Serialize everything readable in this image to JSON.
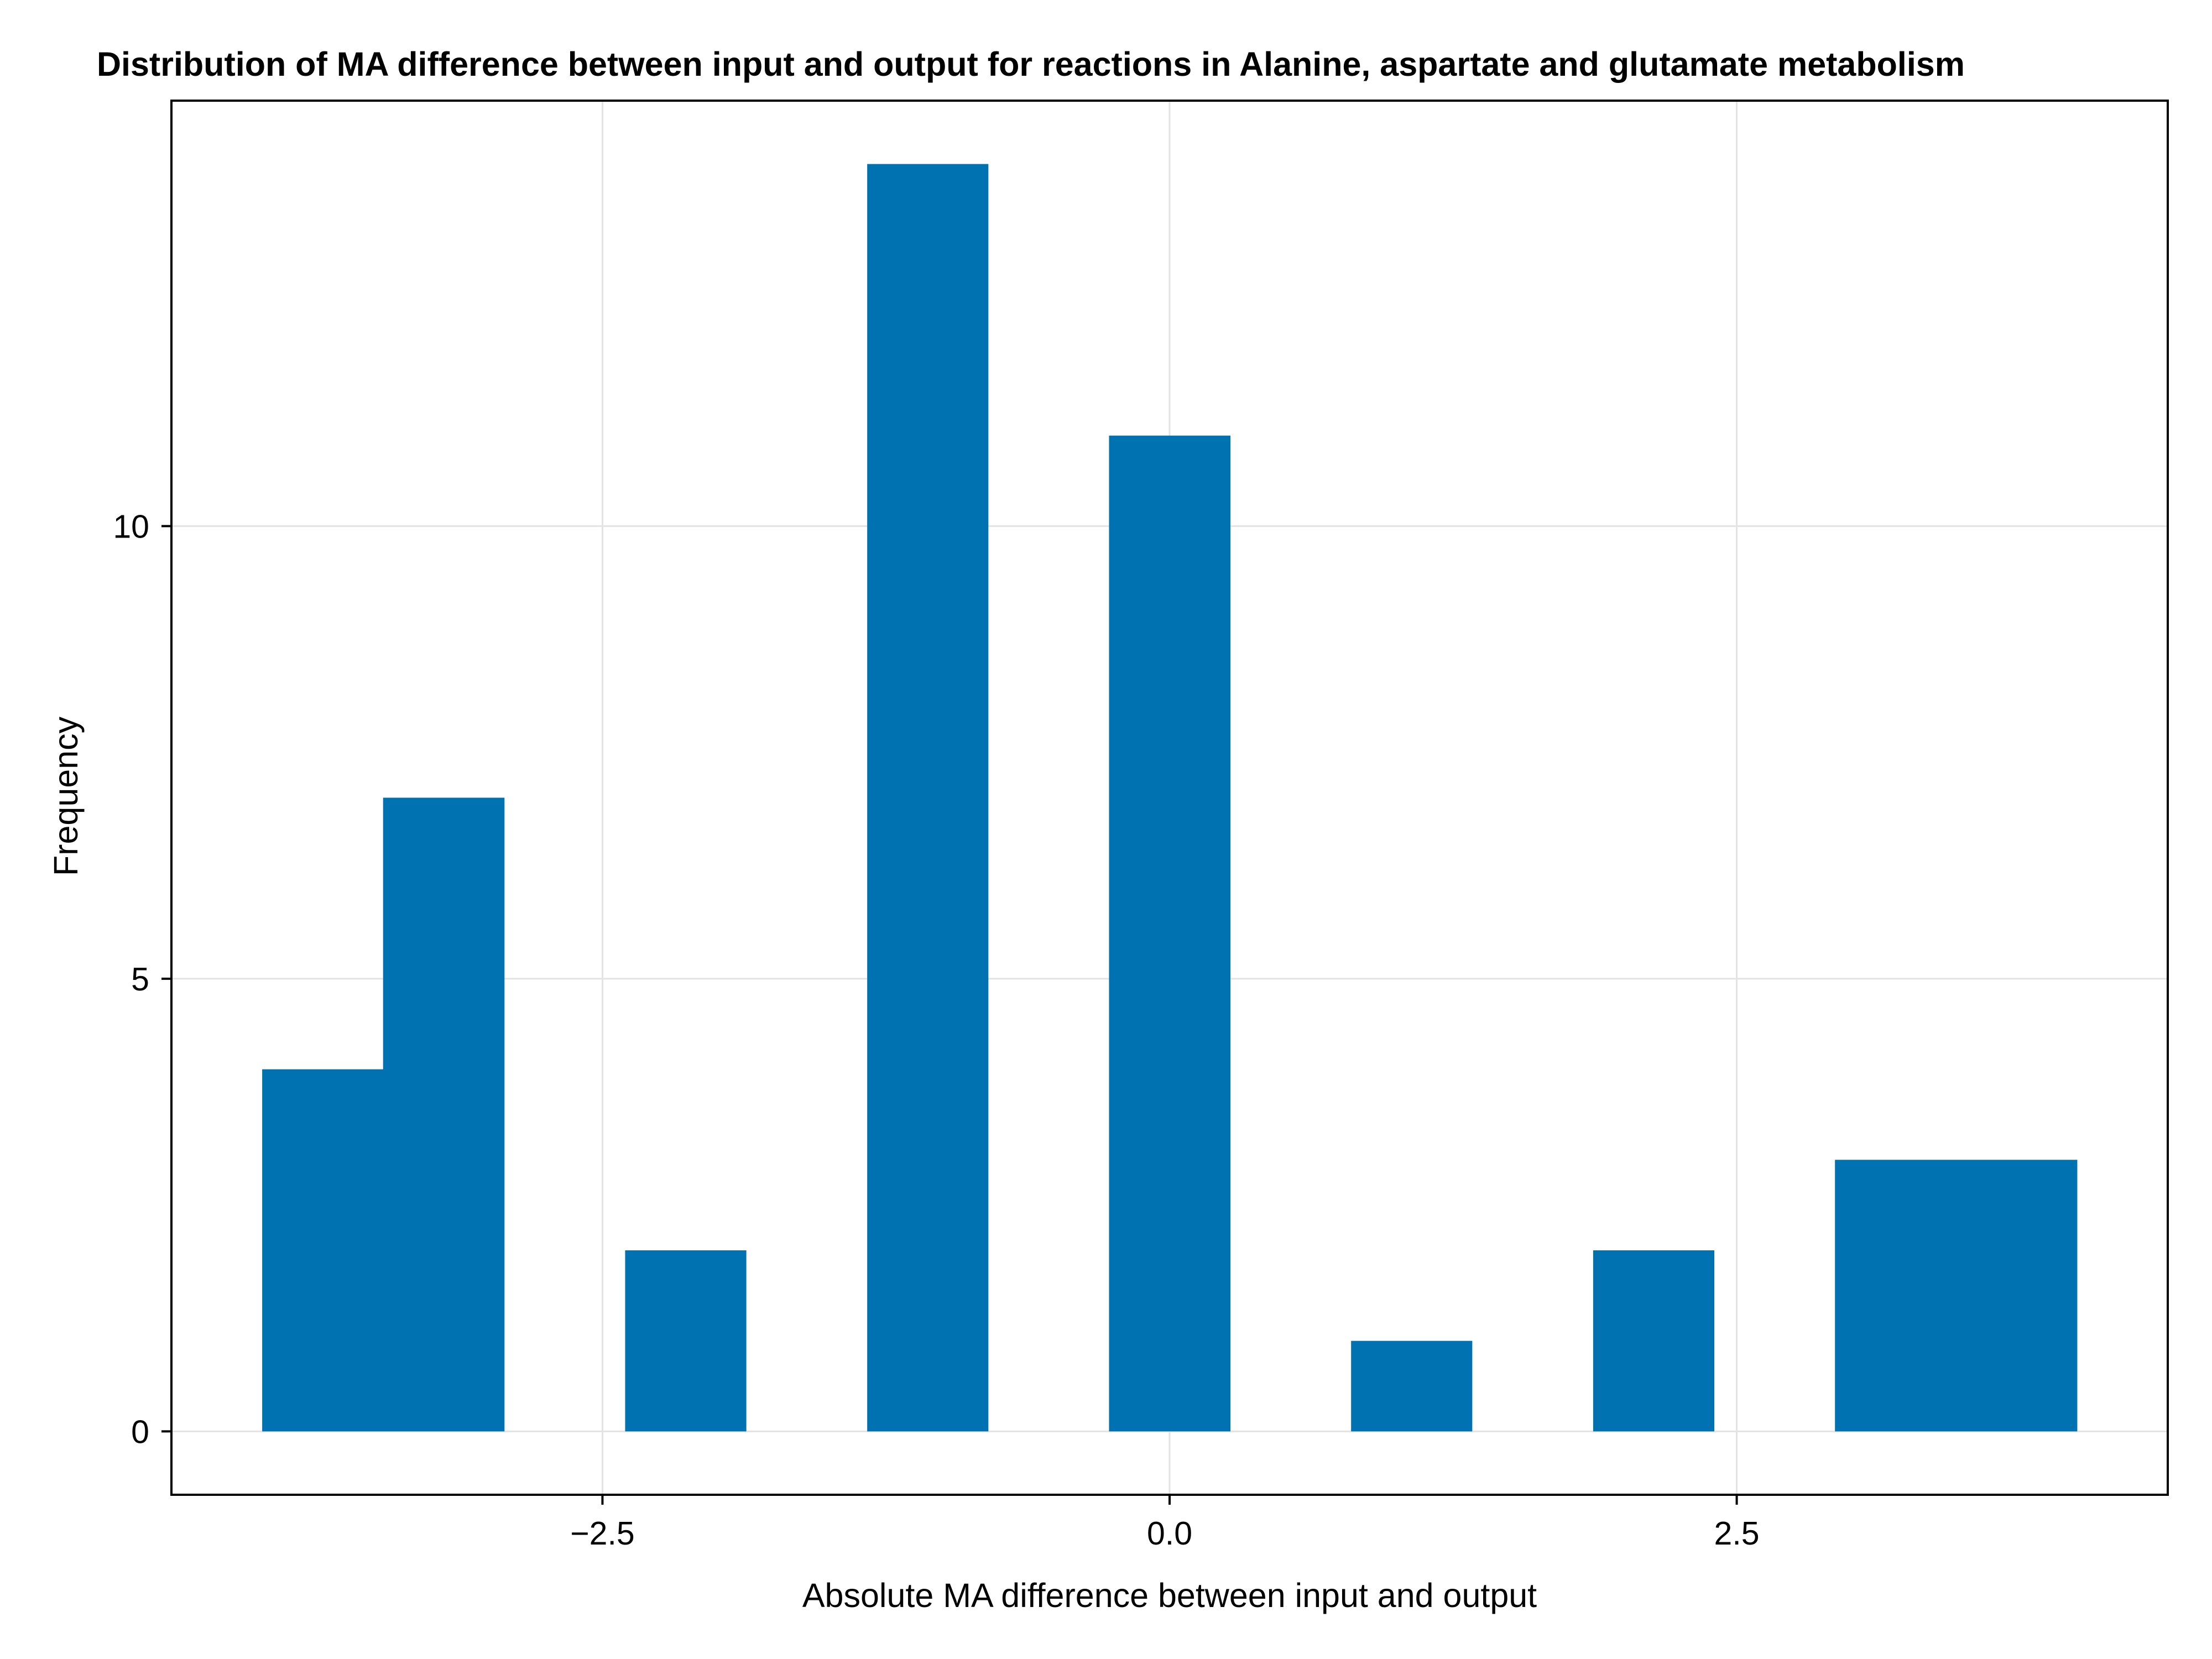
{
  "chart_data": {
    "type": "bar",
    "title": "Distribution of MA difference between input and output for reactions in Alanine, aspartate and glutamate metabolism",
    "xlabel": "Absolute MA difference between input and output",
    "ylabel": "Frequency",
    "xlim": [
      -4.4,
      4.4
    ],
    "ylim": [
      -0.7,
      14.7
    ],
    "xticks": [
      -2.5,
      0.0,
      2.5
    ],
    "xtick_labels": [
      "−2.5",
      "0.0",
      "2.5"
    ],
    "yticks": [
      0,
      5,
      10
    ],
    "ytick_labels": [
      "0",
      "5",
      "10"
    ],
    "grid": true,
    "bin_width": 0.533,
    "bins": [
      {
        "x0": -4.0,
        "x1": -3.467,
        "count": 4
      },
      {
        "x0": -3.467,
        "x1": -2.933,
        "count": 7
      },
      {
        "x0": -2.4,
        "x1": -1.867,
        "count": 2
      },
      {
        "x0": -1.333,
        "x1": -0.8,
        "count": 14
      },
      {
        "x0": -0.267,
        "x1": 0.267,
        "count": 11
      },
      {
        "x0": 0.8,
        "x1": 1.333,
        "count": 1
      },
      {
        "x0": 1.867,
        "x1": 2.4,
        "count": 2
      },
      {
        "x0": 2.933,
        "x1": 3.467,
        "count": 3
      },
      {
        "x0": 3.467,
        "x1": 4.0,
        "count": 3
      }
    ],
    "bar_color": "#0072b2"
  }
}
